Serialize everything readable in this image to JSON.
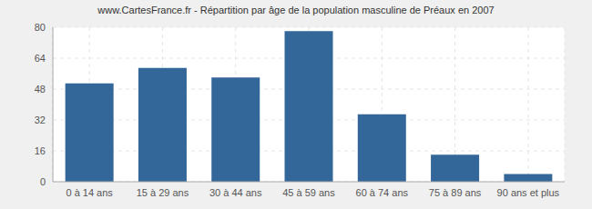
{
  "chart_data": {
    "type": "bar",
    "title": "www.CartesFrance.fr - Répartition par âge de la population masculine de Préaux en 2007",
    "categories": [
      "0 à 14 ans",
      "15 à 29 ans",
      "30 à 44 ans",
      "45 à 59 ans",
      "60 à 74 ans",
      "75 à 89 ans",
      "90 ans et plus"
    ],
    "values": [
      51,
      59,
      54,
      78,
      35,
      14,
      4
    ],
    "color": "#336699",
    "ylim": [
      0,
      80
    ],
    "yticks": [
      0,
      16,
      32,
      48,
      64,
      80
    ],
    "grid": true
  }
}
